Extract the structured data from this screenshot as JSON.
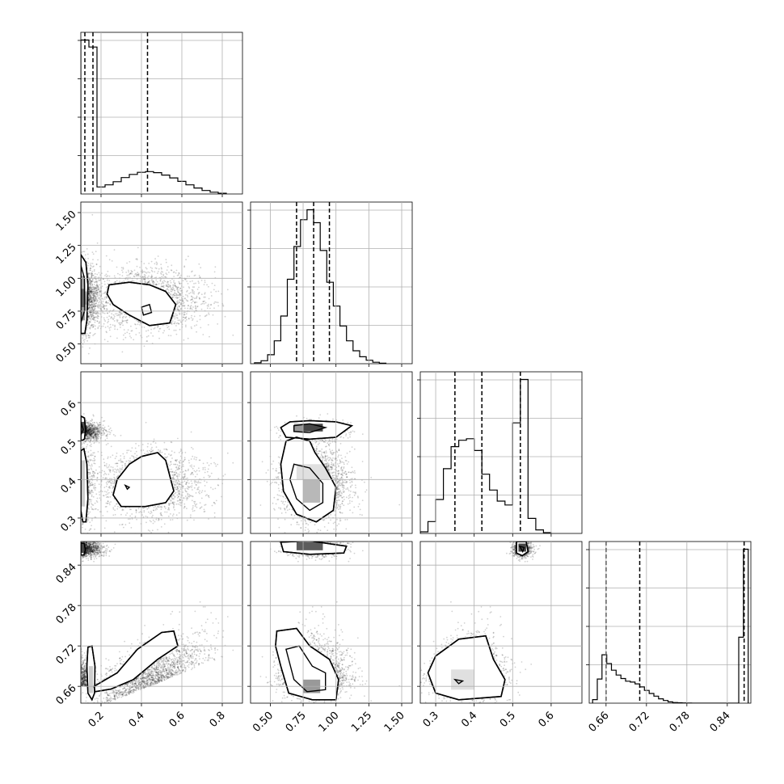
{
  "chart_data": {
    "type": "corner",
    "parameters": [
      {
        "range": [
          0.1,
          0.9
        ],
        "ticks": [
          "0.2",
          "0.4",
          "0.6",
          "0.8"
        ],
        "tick_values": [
          0.2,
          0.4,
          0.6,
          0.8
        ],
        "quantiles": [
          0.12,
          0.16,
          0.43
        ]
      },
      {
        "range": [
          0.35,
          1.58
        ],
        "ticks": [
          "0.50",
          "0.75",
          "1.00",
          "1.25",
          "1.50"
        ],
        "tick_values": [
          0.5,
          0.75,
          1.0,
          1.25,
          1.5
        ],
        "quantiles": [
          0.7,
          0.83,
          0.95
        ]
      },
      {
        "range": [
          0.26,
          0.68
        ],
        "ticks": [
          "0.3",
          "0.4",
          "0.5",
          "0.6"
        ],
        "tick_values": [
          0.3,
          0.4,
          0.5,
          0.6
        ],
        "quantiles": [
          0.35,
          0.42,
          0.52
        ]
      },
      {
        "range": [
          0.635,
          0.875
        ],
        "ticks": [
          "0.66",
          "0.72",
          "0.78",
          "0.84"
        ],
        "tick_values": [
          0.66,
          0.72,
          0.78,
          0.84
        ],
        "quantiles": [
          0.66,
          0.71,
          0.865
        ]
      }
    ],
    "histograms": [
      {
        "edges": [
          0.1,
          0.14,
          0.18,
          0.22,
          0.26,
          0.3,
          0.34,
          0.38,
          0.42,
          0.46,
          0.5,
          0.54,
          0.58,
          0.62,
          0.66,
          0.7,
          0.74,
          0.78,
          0.82
        ],
        "counts": [
          4400,
          4200,
          200,
          260,
          350,
          470,
          560,
          620,
          640,
          610,
          540,
          460,
          360,
          260,
          170,
          100,
          50,
          20
        ]
      },
      {
        "edges": [
          0.38,
          0.43,
          0.48,
          0.53,
          0.58,
          0.63,
          0.68,
          0.73,
          0.78,
          0.83,
          0.88,
          0.93,
          0.98,
          1.03,
          1.08,
          1.13,
          1.18,
          1.23,
          1.28,
          1.33,
          1.38
        ],
        "counts": [
          10,
          30,
          90,
          230,
          480,
          850,
          1180,
          1450,
          1550,
          1420,
          1140,
          820,
          580,
          380,
          230,
          130,
          70,
          35,
          15,
          5
        ]
      },
      {
        "edges": [
          0.26,
          0.28,
          0.3,
          0.32,
          0.34,
          0.36,
          0.38,
          0.4,
          0.42,
          0.44,
          0.46,
          0.48,
          0.5,
          0.52,
          0.54,
          0.56,
          0.58,
          0.6
        ],
        "counts": [
          20,
          150,
          430,
          820,
          1100,
          1180,
          1200,
          1050,
          750,
          550,
          410,
          360,
          1400,
          1950,
          190,
          45,
          10
        ]
      },
      {
        "edges": [
          0.64,
          0.647,
          0.654,
          0.661,
          0.668,
          0.675,
          0.682,
          0.689,
          0.696,
          0.703,
          0.71,
          0.717,
          0.724,
          0.731,
          0.738,
          0.745,
          0.752,
          0.759,
          0.766,
          0.773,
          0.78,
          0.787,
          0.794,
          0.801,
          0.808,
          0.815,
          0.822,
          0.829,
          0.836,
          0.843,
          0.85,
          0.857,
          0.864,
          0.871
        ],
        "counts": [
          80,
          550,
          1100,
          900,
          750,
          640,
          560,
          500,
          480,
          440,
          370,
          290,
          220,
          160,
          100,
          60,
          30,
          15,
          10,
          5,
          2,
          0,
          0,
          0,
          0,
          0,
          0,
          0,
          0,
          0,
          0,
          1500,
          3500
        ]
      }
    ],
    "grid": true
  }
}
